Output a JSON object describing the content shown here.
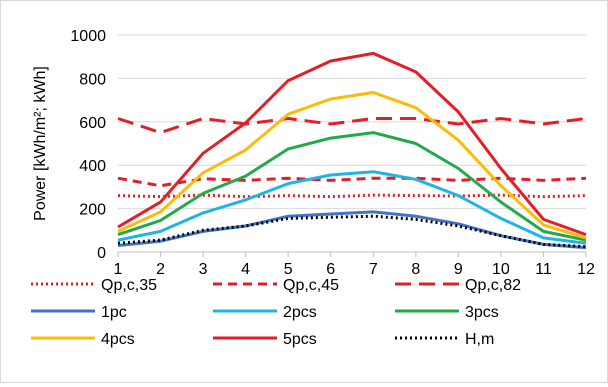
{
  "chart_data": {
    "type": "line",
    "title": "",
    "xlabel": "",
    "ylabel": "Power [kWh/m²; kWh]",
    "x": [
      1,
      2,
      3,
      4,
      5,
      6,
      7,
      8,
      9,
      10,
      11,
      12
    ],
    "ylim": [
      0,
      1000
    ],
    "yticks": [
      0,
      200,
      400,
      600,
      800,
      1000
    ],
    "grid": "horizontal",
    "legend_position": "bottom",
    "series": [
      {
        "name": "Qp,c,35",
        "color": "#e41e26",
        "dash": "dotted",
        "values": [
          260,
          255,
          262,
          255,
          260,
          255,
          262,
          260,
          258,
          262,
          255,
          260
        ]
      },
      {
        "name": "Qp,c,45",
        "color": "#e41e26",
        "dash": "dashed",
        "values": [
          340,
          305,
          338,
          330,
          340,
          330,
          340,
          340,
          330,
          340,
          330,
          340
        ]
      },
      {
        "name": "Qp,c,82",
        "color": "#e41e26",
        "dash": "longdash",
        "values": [
          615,
          550,
          615,
          590,
          615,
          590,
          615,
          615,
          590,
          615,
          590,
          615
        ]
      },
      {
        "name": "1pc",
        "color": "#4472c4",
        "dash": "solid",
        "values": [
          30,
          50,
          95,
          120,
          165,
          175,
          185,
          165,
          130,
          75,
          35,
          20
        ]
      },
      {
        "name": "2pcs",
        "color": "#1fb4e8",
        "dash": "solid",
        "values": [
          55,
          95,
          180,
          240,
          315,
          355,
          370,
          335,
          260,
          155,
          65,
          40
        ]
      },
      {
        "name": "3pcs",
        "color": "#22a94b",
        "dash": "solid",
        "values": [
          80,
          145,
          270,
          350,
          475,
          525,
          550,
          500,
          385,
          230,
          95,
          55
        ]
      },
      {
        "name": "4pcs",
        "color": "#fbbc09",
        "dash": "solid",
        "values": [
          95,
          185,
          365,
          470,
          635,
          705,
          735,
          665,
          515,
          305,
          125,
          65
        ]
      },
      {
        "name": "5pcs",
        "color": "#e41e26",
        "dash": "solid",
        "values": [
          115,
          230,
          455,
          595,
          790,
          880,
          915,
          830,
          645,
          385,
          150,
          80
        ]
      },
      {
        "name": "H,m",
        "color": "#000000",
        "dash": "dotted",
        "values": [
          40,
          55,
          100,
          120,
          155,
          160,
          165,
          150,
          120,
          75,
          35,
          25
        ]
      }
    ]
  }
}
